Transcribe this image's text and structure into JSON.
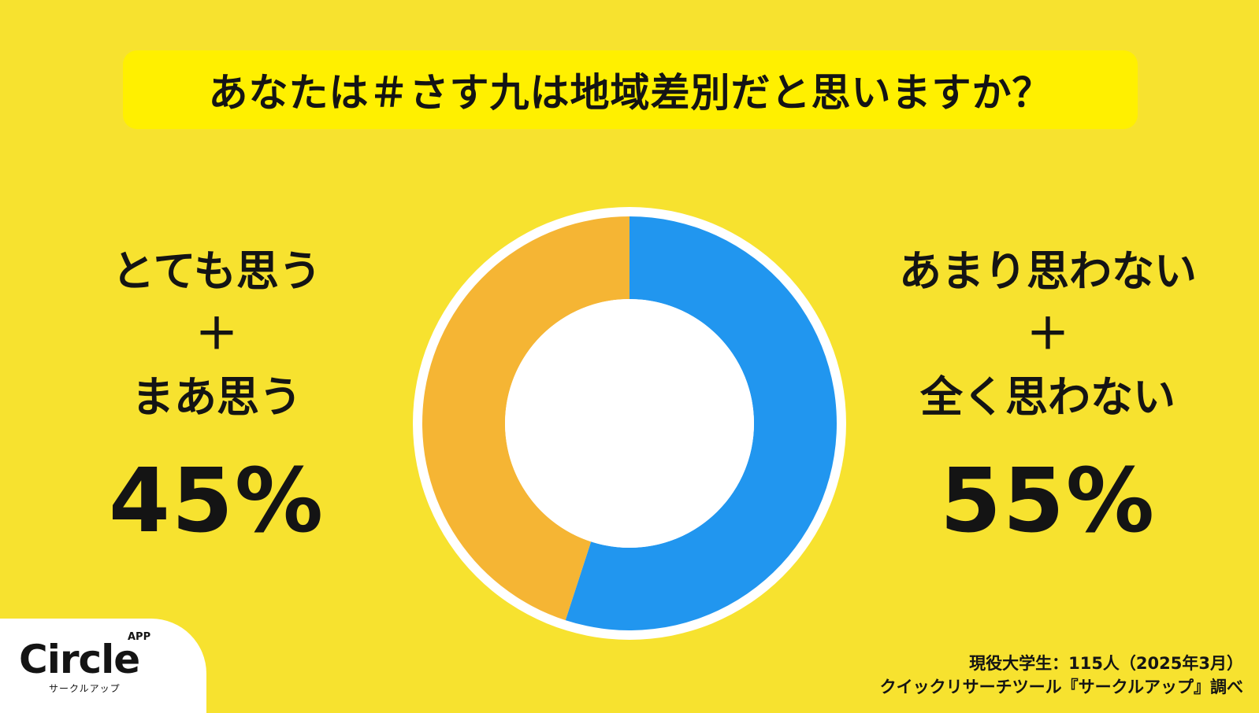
{
  "title": "あなたは＃さす九は地域差別だと思いますか？",
  "left_group": {
    "lines": [
      "とても思う",
      "＋",
      "まあ思う"
    ],
    "percent_label": "45%"
  },
  "right_group": {
    "lines": [
      "あまり思わない",
      "＋",
      "全く思わない"
    ],
    "percent_label": "55%"
  },
  "chart_data": {
    "type": "pie",
    "title": "あなたは＃さす九は地域差別だと思いますか？",
    "slices": [
      {
        "label": "あまり思わない＋全く思わない",
        "value": 55,
        "color": "#2196ef"
      },
      {
        "label": "とても思う＋まあ思う",
        "value": 45,
        "color": "#f5b534"
      }
    ],
    "donut": true
  },
  "source": {
    "line1": "現役大学生：115人（2025年3月）",
    "line2": "クイックリサーチツール『サークルアップ』調べ"
  },
  "logo": {
    "word": "Circle",
    "badge": "APP",
    "kana": "サークルアップ"
  },
  "colors": {
    "background": "#f7e22f",
    "title_box": "#fff000",
    "blue": "#2196ef",
    "orange": "#f5b534"
  }
}
